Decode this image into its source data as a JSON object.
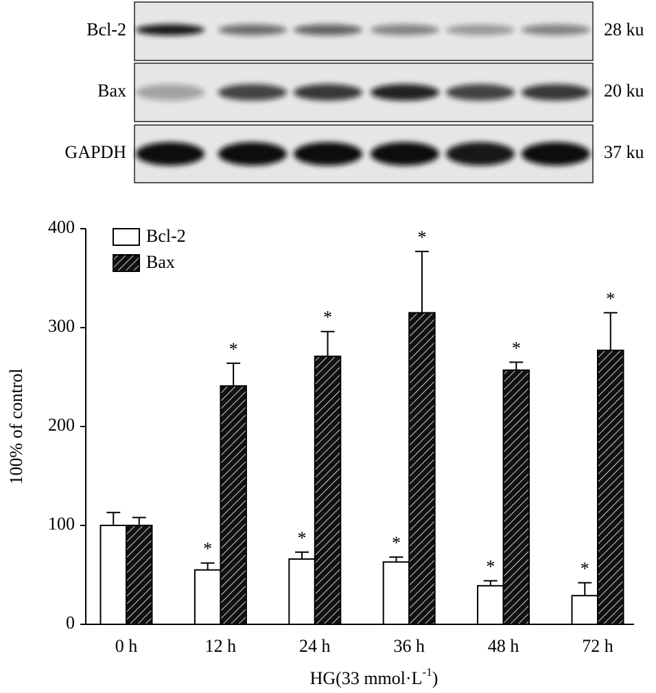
{
  "blot": {
    "rows": [
      {
        "label": "Bcl-2",
        "size": "28 ku"
      },
      {
        "label": "Bax",
        "size": "20 ku"
      },
      {
        "label": "GAPDH",
        "size": "37 ku"
      }
    ]
  },
  "chart_data": {
    "type": "bar",
    "y_label": "100% of control",
    "x_label": "HG(33 mmol·L",
    "x_label_sup": "-1",
    "x_label_end": ")",
    "categories": [
      "0 h",
      "12 h",
      "24 h",
      "36 h",
      "48 h",
      "72 h"
    ],
    "series": [
      {
        "name": "Bcl-2",
        "color": "#ffffff",
        "hatch": false,
        "values": [
          100,
          55,
          66,
          63,
          39,
          29
        ],
        "errors": [
          13,
          7,
          7,
          5,
          5,
          13
        ],
        "significance": [
          null,
          "*",
          "*",
          "*",
          "*",
          "*"
        ]
      },
      {
        "name": "Bax",
        "color": "#000000",
        "hatch": true,
        "values": [
          100,
          241,
          271,
          315,
          257,
          277
        ],
        "errors": [
          8,
          23,
          25,
          62,
          8,
          38
        ],
        "significance": [
          null,
          "*",
          "*",
          "*",
          "*",
          "*"
        ]
      }
    ],
    "ylim": [
      0,
      400
    ],
    "yticks": [
      0,
      100,
      200,
      300,
      400
    ],
    "legend": "top-left"
  }
}
